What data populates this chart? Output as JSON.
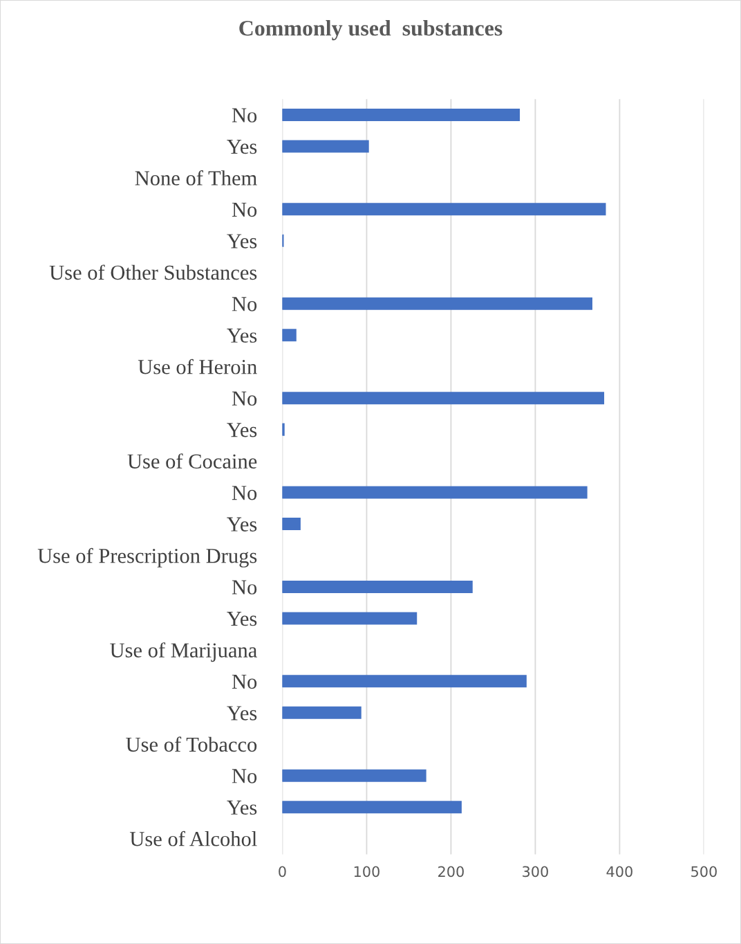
{
  "chart_data": {
    "type": "bar",
    "orientation": "horizontal",
    "title": "Commonly used  substances",
    "categories": [
      "No",
      "Yes",
      "None of Them",
      "No",
      "Yes",
      "Use of Other Substances",
      "No",
      "Yes",
      "Use of Heroin",
      "No",
      "Yes",
      "Use of Cocaine",
      "No",
      "Yes",
      "Use of Prescription Drugs",
      "No",
      "Yes",
      "Use of Marijuana",
      "No",
      "Yes",
      "Use of Tobacco",
      "No",
      "Yes",
      "Use of Alcohol"
    ],
    "values": [
      281,
      102,
      null,
      383,
      1,
      null,
      367,
      16,
      null,
      381,
      2,
      null,
      361,
      21,
      null,
      225,
      159,
      null,
      289,
      93,
      null,
      170,
      212,
      null
    ],
    "color": "#4472c4",
    "xlim": [
      0,
      500
    ],
    "xticks": [
      0,
      100,
      200,
      300,
      400,
      500
    ],
    "grid": "x",
    "legend": false
  }
}
